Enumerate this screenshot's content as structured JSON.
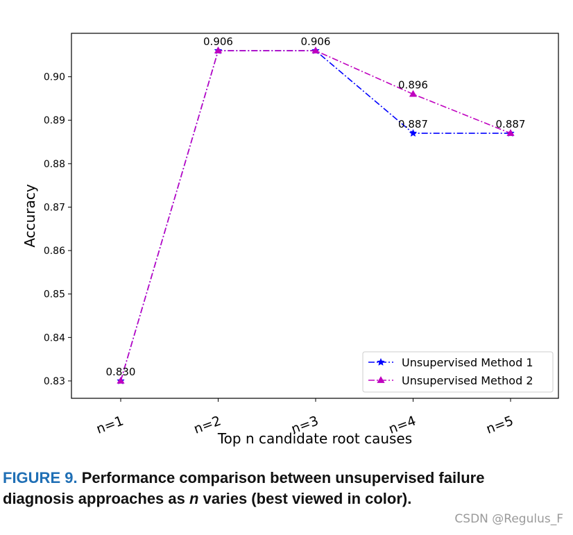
{
  "chart_data": {
    "type": "line",
    "categories": [
      "n=1",
      "n=2",
      "n=3",
      "n=4",
      "n=5"
    ],
    "series": [
      {
        "name": "Unsupervised Method 1",
        "values": [
          0.83,
          0.906,
          0.906,
          0.887,
          0.887
        ],
        "color": "#0000ff",
        "marker": "star",
        "linestyle": "dash-dot"
      },
      {
        "name": "Unsupervised Method 2",
        "values": [
          0.83,
          0.906,
          0.906,
          0.896,
          0.887
        ],
        "color": "#bf00bf",
        "marker": "triangle",
        "linestyle": "dash-dot"
      }
    ],
    "annotations": [
      {
        "x": "n=1",
        "value": 0.83,
        "text": "0.830"
      },
      {
        "x": "n=2",
        "value": 0.906,
        "text": "0.906"
      },
      {
        "x": "n=3",
        "value": 0.906,
        "text": "0.906"
      },
      {
        "x": "n=4",
        "value": 0.887,
        "text": "0.887"
      },
      {
        "x": "n=4",
        "value": 0.896,
        "text": "0.896"
      },
      {
        "x": "n=5",
        "value": 0.887,
        "text": "0.887"
      }
    ],
    "yticks": [
      0.83,
      0.84,
      0.85,
      0.86,
      0.87,
      0.88,
      0.89,
      0.9
    ],
    "ytick_labels": [
      "0.83",
      "0.84",
      "0.85",
      "0.86",
      "0.87",
      "0.88",
      "0.89",
      "0.90"
    ],
    "ylim": [
      0.826,
      0.91
    ],
    "xlabel": "Top n candidate root causes",
    "ylabel": "Accuracy",
    "legend_position": "lower-right",
    "grid": false
  },
  "caption": {
    "figure_label": "FIGURE 9.",
    "text_before": "Performance comparison between unsupervised failure diagnosis approaches as",
    "italic": "n",
    "text_after": "varies (best viewed in color)."
  },
  "watermark": "CSDN @Regulus_F"
}
